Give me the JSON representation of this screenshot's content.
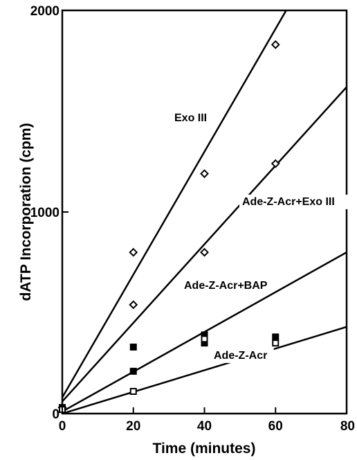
{
  "chart_data": {
    "type": "scatter",
    "xlabel": "Time (minutes)",
    "ylabel": "dATP Incorporation (cpm)",
    "xlim": [
      0,
      80
    ],
    "ylim": [
      0,
      2000
    ],
    "x_ticks": [
      "0",
      "20",
      "40",
      "60",
      "80"
    ],
    "y_ticks": [
      "0",
      "1000",
      "2000"
    ],
    "grid": false,
    "series": [
      {
        "name": "Exo III",
        "marker": "diamond",
        "points": [
          [
            0,
            30
          ],
          [
            20,
            800
          ],
          [
            40,
            1190
          ],
          [
            60,
            1830
          ]
        ],
        "fit": [
          [
            0,
            80
          ],
          [
            63,
            2000
          ]
        ]
      },
      {
        "name": "Ade-Z-Acr+Exo III",
        "marker": "diamond",
        "points": [
          [
            0,
            30
          ],
          [
            20,
            540
          ],
          [
            40,
            800
          ],
          [
            60,
            1240
          ]
        ],
        "fit": [
          [
            0,
            60
          ],
          [
            80,
            1620
          ]
        ]
      },
      {
        "name": "Ade-Z-Acr+BAP",
        "marker": "filled-square",
        "points": [
          [
            0,
            30
          ],
          [
            20,
            330
          ],
          [
            20,
            210
          ],
          [
            40,
            390
          ],
          [
            40,
            350
          ],
          [
            60,
            380
          ]
        ],
        "fit": [
          [
            0,
            10
          ],
          [
            80,
            800
          ]
        ]
      },
      {
        "name": "Ade-Z-Acr",
        "marker": "open-square",
        "points": [
          [
            0,
            20
          ],
          [
            20,
            110
          ],
          [
            40,
            370
          ],
          [
            60,
            350
          ]
        ],
        "fit": [
          [
            0,
            0
          ],
          [
            80,
            430
          ]
        ]
      }
    ]
  }
}
